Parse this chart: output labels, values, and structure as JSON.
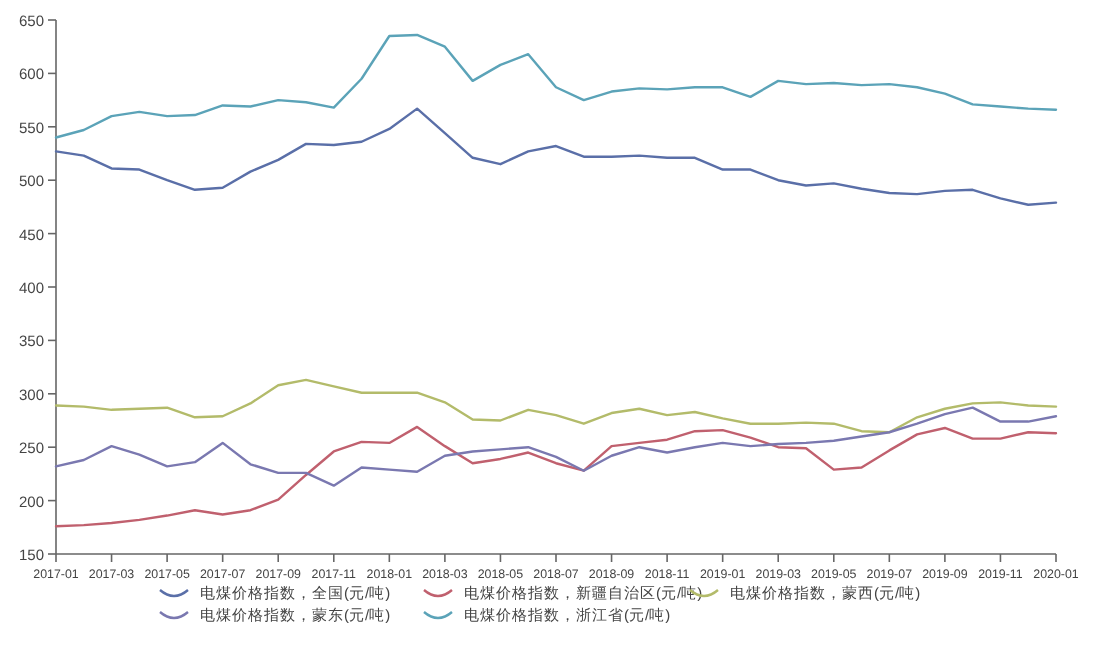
{
  "chart_data": {
    "type": "line",
    "x": [
      "2017-01",
      "2017-02",
      "2017-03",
      "2017-04",
      "2017-05",
      "2017-06",
      "2017-07",
      "2017-08",
      "2017-09",
      "2017-10",
      "2017-11",
      "2017-12",
      "2018-01",
      "2018-02",
      "2018-03",
      "2018-04",
      "2018-05",
      "2018-06",
      "2018-07",
      "2018-08",
      "2018-09",
      "2018-10",
      "2018-11",
      "2018-12",
      "2019-01",
      "2019-02",
      "2019-03",
      "2019-04",
      "2019-05",
      "2019-06",
      "2019-07",
      "2019-08",
      "2019-09",
      "2019-10",
      "2019-11",
      "2019-12",
      "2020-01"
    ],
    "series": [
      {
        "name": "电煤价格指数，全国(元/吨)",
        "color": "#5a6fa8",
        "values": [
          527,
          523,
          511,
          510,
          500,
          491,
          493,
          508,
          519,
          534,
          533,
          536,
          548,
          567,
          544,
          521,
          515,
          527,
          532,
          522,
          522,
          523,
          521,
          521,
          510,
          510,
          500,
          495,
          497,
          492,
          488,
          487,
          490,
          491,
          483,
          477,
          479
        ]
      },
      {
        "name": "电煤价格指数，新疆自治区(元/吨)",
        "color": "#c0606e",
        "values": [
          176,
          177,
          179,
          182,
          186,
          191,
          187,
          191,
          201,
          224,
          246,
          255,
          254,
          269,
          251,
          235,
          239,
          245,
          235,
          228,
          251,
          254,
          257,
          265,
          266,
          259,
          250,
          249,
          229,
          231,
          247,
          262,
          268,
          258,
          258,
          264,
          263
        ]
      },
      {
        "name": "电煤价格指数，蒙西(元/吨)",
        "color": "#b3bb6a",
        "values": [
          289,
          288,
          285,
          286,
          287,
          278,
          279,
          291,
          308,
          313,
          307,
          301,
          301,
          301,
          292,
          276,
          275,
          285,
          280,
          272,
          282,
          286,
          280,
          283,
          277,
          272,
          272,
          273,
          272,
          265,
          264,
          278,
          286,
          291,
          292,
          289,
          288
        ]
      },
      {
        "name": "电煤价格指数，蒙东(元/吨)",
        "color": "#7a78b0",
        "values": [
          232,
          238,
          251,
          243,
          232,
          236,
          254,
          234,
          226,
          226,
          214,
          231,
          229,
          227,
          242,
          246,
          248,
          250,
          241,
          228,
          242,
          250,
          245,
          250,
          254,
          251,
          253,
          254,
          256,
          260,
          264,
          272,
          281,
          287,
          274,
          274,
          279
        ]
      },
      {
        "name": "电煤价格指数，浙江省(元/吨)",
        "color": "#5ba3b8",
        "values": [
          540,
          547,
          560,
          564,
          560,
          561,
          570,
          569,
          575,
          573,
          568,
          595,
          635,
          636,
          625,
          593,
          608,
          618,
          587,
          575,
          583,
          586,
          585,
          587,
          587,
          578,
          593,
          590,
          591,
          589,
          590,
          587,
          581,
          571,
          569,
          567,
          566
        ]
      }
    ],
    "xlim": [
      "2017-01",
      "2020-01"
    ],
    "xticks": [
      "2017-01",
      "2017-03",
      "2017-05",
      "2017-07",
      "2017-09",
      "2017-11",
      "2018-01",
      "2018-03",
      "2018-05",
      "2018-07",
      "2018-09",
      "2018-11",
      "2019-01",
      "2019-03",
      "2019-05",
      "2019-07",
      "2019-09",
      "2019-11",
      "2020-01"
    ],
    "ylim": [
      150,
      650
    ],
    "yticks": [
      150,
      200,
      250,
      300,
      350,
      400,
      450,
      500,
      550,
      600,
      650
    ],
    "legend": "bottom",
    "marker": "none",
    "line_style": "solid"
  }
}
